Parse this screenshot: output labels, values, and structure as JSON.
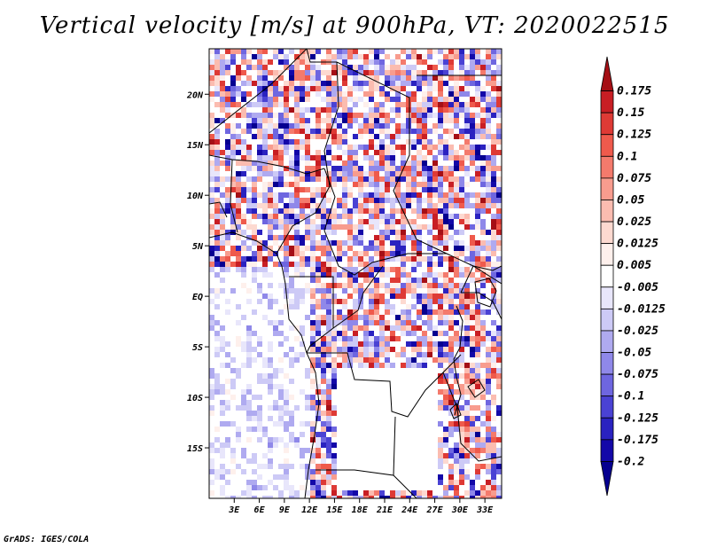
{
  "chart_data": {
    "type": "heatmap",
    "title": "Vertical velocity [m/s] at 900hPa, VT: 2020022515",
    "variable": "Vertical velocity",
    "units": "m/s",
    "level": "900hPa",
    "valid_time": "2020022515",
    "xlabel": "",
    "ylabel": "",
    "x_range": [
      0,
      35
    ],
    "y_range": [
      -20,
      24.5
    ],
    "x_ticks": [
      {
        "value": 3,
        "label": "3E"
      },
      {
        "value": 6,
        "label": "6E"
      },
      {
        "value": 9,
        "label": "9E"
      },
      {
        "value": 12,
        "label": "12E"
      },
      {
        "value": 15,
        "label": "15E"
      },
      {
        "value": 18,
        "label": "18E"
      },
      {
        "value": 21,
        "label": "21E"
      },
      {
        "value": 24,
        "label": "24E"
      },
      {
        "value": 27,
        "label": "27E"
      },
      {
        "value": 30,
        "label": "30E"
      },
      {
        "value": 33,
        "label": "33E"
      }
    ],
    "y_ticks": [
      {
        "value": 20,
        "label": "20N"
      },
      {
        "value": 15,
        "label": "15N"
      },
      {
        "value": 10,
        "label": "10N"
      },
      {
        "value": 5,
        "label": "5N"
      },
      {
        "value": 0,
        "label": "EQ"
      },
      {
        "value": -5,
        "label": "5S"
      },
      {
        "value": -10,
        "label": "10S"
      },
      {
        "value": -15,
        "label": "15S"
      }
    ],
    "colorbar": {
      "levels": [
        "0.175",
        "0.15",
        "0.125",
        "0.1",
        "0.075",
        "0.05",
        "0.025",
        "0.0125",
        "0.005",
        "-0.005",
        "-0.0125",
        "-0.025",
        "-0.05",
        "-0.075",
        "-0.1",
        "-0.125",
        "-0.175",
        "-0.2"
      ],
      "colors": [
        "#a50f15",
        "#c81e24",
        "#de3a35",
        "#ef5a4c",
        "#f47a6c",
        "#f89c8e",
        "#fbbcb0",
        "#fdd9d0",
        "#fef0ec",
        "#ffffff",
        "#e8e6fb",
        "#cdcaf6",
        "#afaaf0",
        "#8f88e9",
        "#6e66e0",
        "#4a42d4",
        "#2a22c0",
        "#1308a8",
        "#060090"
      ]
    }
  },
  "footer": {
    "credit": "GrADS: IGES/COLA"
  }
}
